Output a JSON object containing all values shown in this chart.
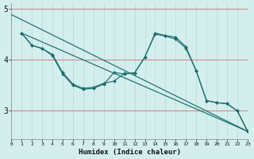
{
  "xlabel": "Humidex (Indice chaleur)",
  "bg_color": "#d4eeee",
  "line_color": "#1a6e6a",
  "grid_v_color": "#b8d8d8",
  "red_line_color": "#cc4444",
  "xlim": [
    0,
    23
  ],
  "ylim": [
    2.45,
    5.1
  ],
  "yticks": [
    3,
    4,
    5
  ],
  "xticks": [
    0,
    1,
    2,
    3,
    4,
    5,
    6,
    7,
    8,
    9,
    10,
    11,
    12,
    13,
    14,
    15,
    16,
    17,
    18,
    19,
    20,
    21,
    22,
    23
  ],
  "line_straight1": {
    "x": [
      0,
      23
    ],
    "y": [
      4.88,
      2.6
    ]
  },
  "line_straight2": {
    "x": [
      1,
      23
    ],
    "y": [
      4.52,
      2.6
    ]
  },
  "line_bumpy1": {
    "x": [
      1,
      2,
      3,
      4,
      5,
      6,
      7,
      8,
      9,
      10,
      11,
      12,
      13,
      14,
      15,
      16,
      17,
      18,
      19,
      20,
      21,
      22,
      23
    ],
    "y": [
      4.52,
      4.28,
      4.22,
      4.1,
      3.75,
      3.52,
      3.44,
      3.46,
      3.54,
      3.58,
      3.73,
      3.74,
      4.05,
      4.52,
      4.47,
      4.44,
      4.25,
      3.78,
      3.2,
      3.16,
      3.14,
      3.0,
      2.6
    ]
  },
  "line_bumpy2": {
    "x": [
      1,
      2,
      3,
      4,
      5,
      6,
      7,
      8,
      9,
      10,
      11,
      12,
      13,
      14,
      15,
      16,
      17,
      18,
      19,
      20,
      21,
      22,
      23
    ],
    "y": [
      4.52,
      4.28,
      4.22,
      4.08,
      3.72,
      3.5,
      3.42,
      3.44,
      3.52,
      3.75,
      3.72,
      3.74,
      4.05,
      4.5,
      4.46,
      4.4,
      4.22,
      3.78,
      3.2,
      3.16,
      3.14,
      3.0,
      2.6
    ]
  }
}
